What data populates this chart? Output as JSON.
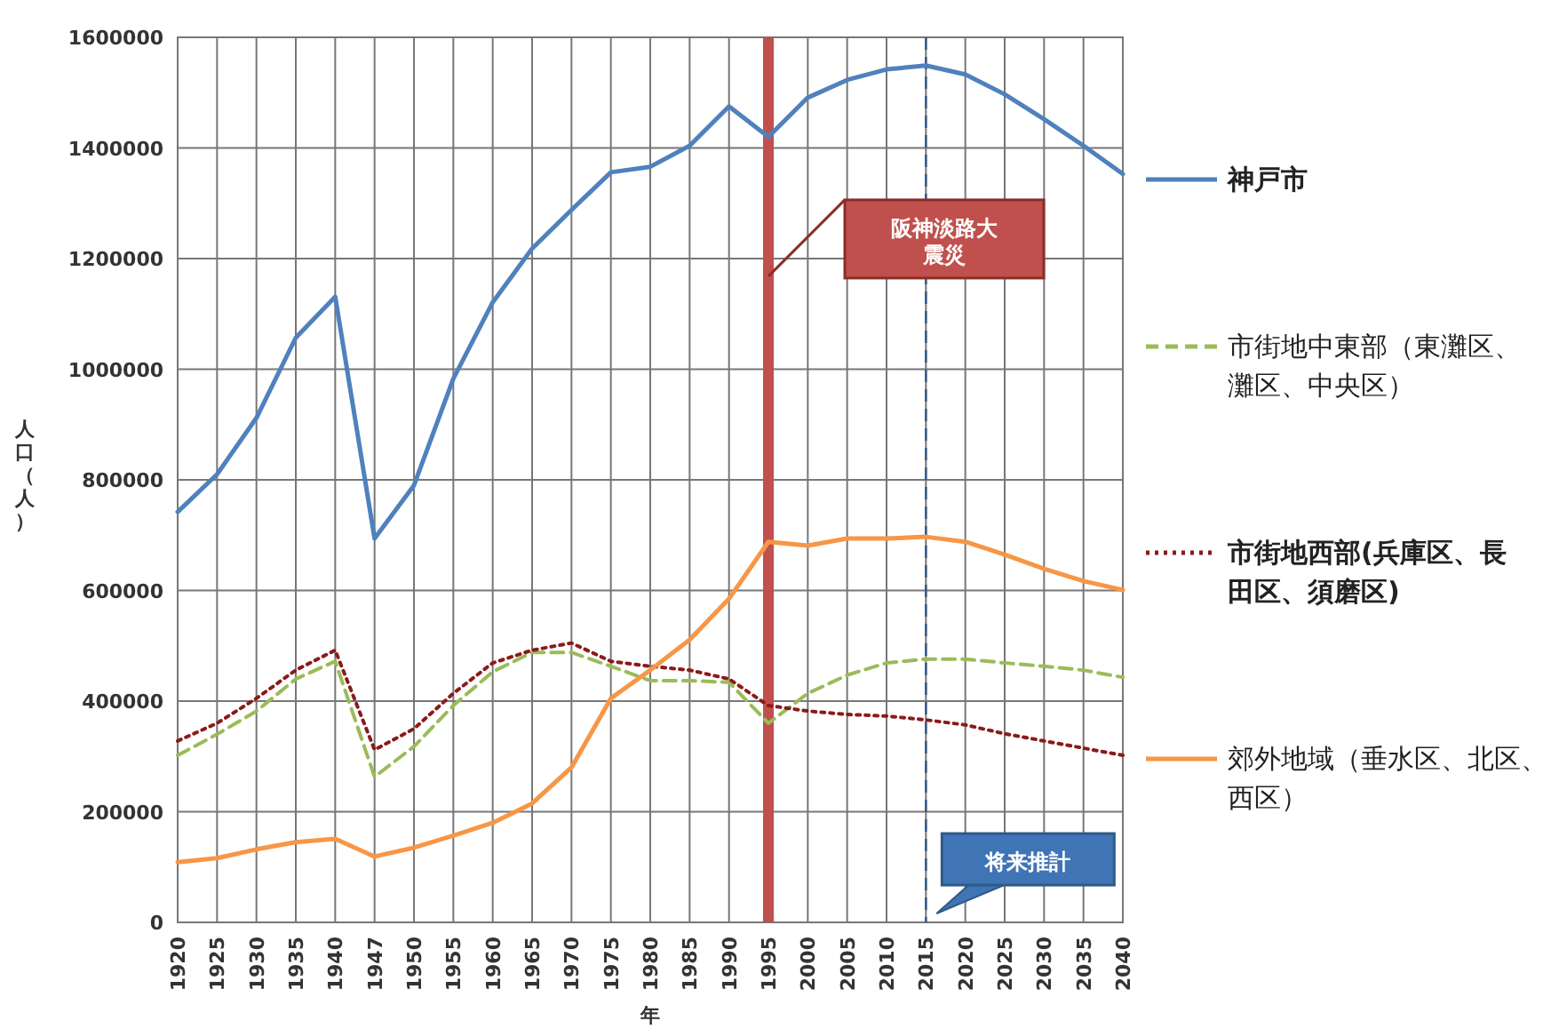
{
  "chart_data": {
    "type": "line",
    "xlabel": "年",
    "ylabel": "人口（人）",
    "categories": [
      "1920",
      "1925",
      "1930",
      "1935",
      "1940",
      "1947",
      "1950",
      "1955",
      "1960",
      "1965",
      "1970",
      "1975",
      "1980",
      "1985",
      "1990",
      "1995",
      "2000",
      "2005",
      "2010",
      "2015",
      "2020",
      "2025",
      "2030",
      "2035",
      "2040"
    ],
    "ylim": [
      0,
      1600000
    ],
    "yticks": [
      0,
      200000,
      400000,
      600000,
      800000,
      1000000,
      1200000,
      1400000,
      1600000
    ],
    "grid": true,
    "legend": "right",
    "series": [
      {
        "name": "神戸市",
        "color": "#4f81bd",
        "line_style": "solid",
        "values": [
          742000,
          810000,
          912000,
          1057000,
          1131000,
          694000,
          790000,
          983000,
          1121000,
          1218000,
          1288000,
          1356000,
          1366000,
          1404000,
          1475000,
          1420000,
          1491000,
          1523000,
          1542000,
          1549000,
          1533000,
          1497000,
          1452000,
          1404000,
          1353000
        ]
      },
      {
        "name": "市街地中東部（東灘区、灘区、中央区）",
        "color": "#9bbb59",
        "line_style": "dashed",
        "values": [
          302000,
          340000,
          382000,
          440000,
          472000,
          263000,
          318000,
          392000,
          453000,
          488000,
          488000,
          463000,
          437000,
          437000,
          434000,
          360000,
          414000,
          447000,
          469000,
          476000,
          476000,
          469000,
          463000,
          456000,
          443000
        ]
      },
      {
        "name": "市街地西部(兵庫区、長田区、須磨区)",
        "color": "#8b1a1a",
        "line_style": "dotted",
        "values": [
          328000,
          360000,
          405000,
          456000,
          492000,
          312000,
          350000,
          414000,
          469000,
          492000,
          505000,
          472000,
          463000,
          456000,
          440000,
          392000,
          382000,
          376000,
          373000,
          366000,
          357000,
          341000,
          328000,
          315000,
          302000
        ]
      },
      {
        "name": "郊外地域（垂水区、北区、西区）",
        "color": "#f79646",
        "line_style": "solid",
        "values": [
          109000,
          116000,
          132000,
          145000,
          151000,
          119000,
          135000,
          157000,
          180000,
          215000,
          280000,
          405000,
          456000,
          511000,
          585000,
          688000,
          681000,
          694000,
          694000,
          697000,
          688000,
          665000,
          639000,
          617000,
          601000
        ]
      }
    ],
    "ref_lines": [
      {
        "axis": "x",
        "value": "1995",
        "color": "#c0504d",
        "line_style": "solid"
      },
      {
        "axis": "x",
        "value": "2015",
        "color": "#2e5a87",
        "line_style": "dashed"
      }
    ],
    "annotations": [
      "阪神淡路大震災",
      "将来推計"
    ]
  }
}
